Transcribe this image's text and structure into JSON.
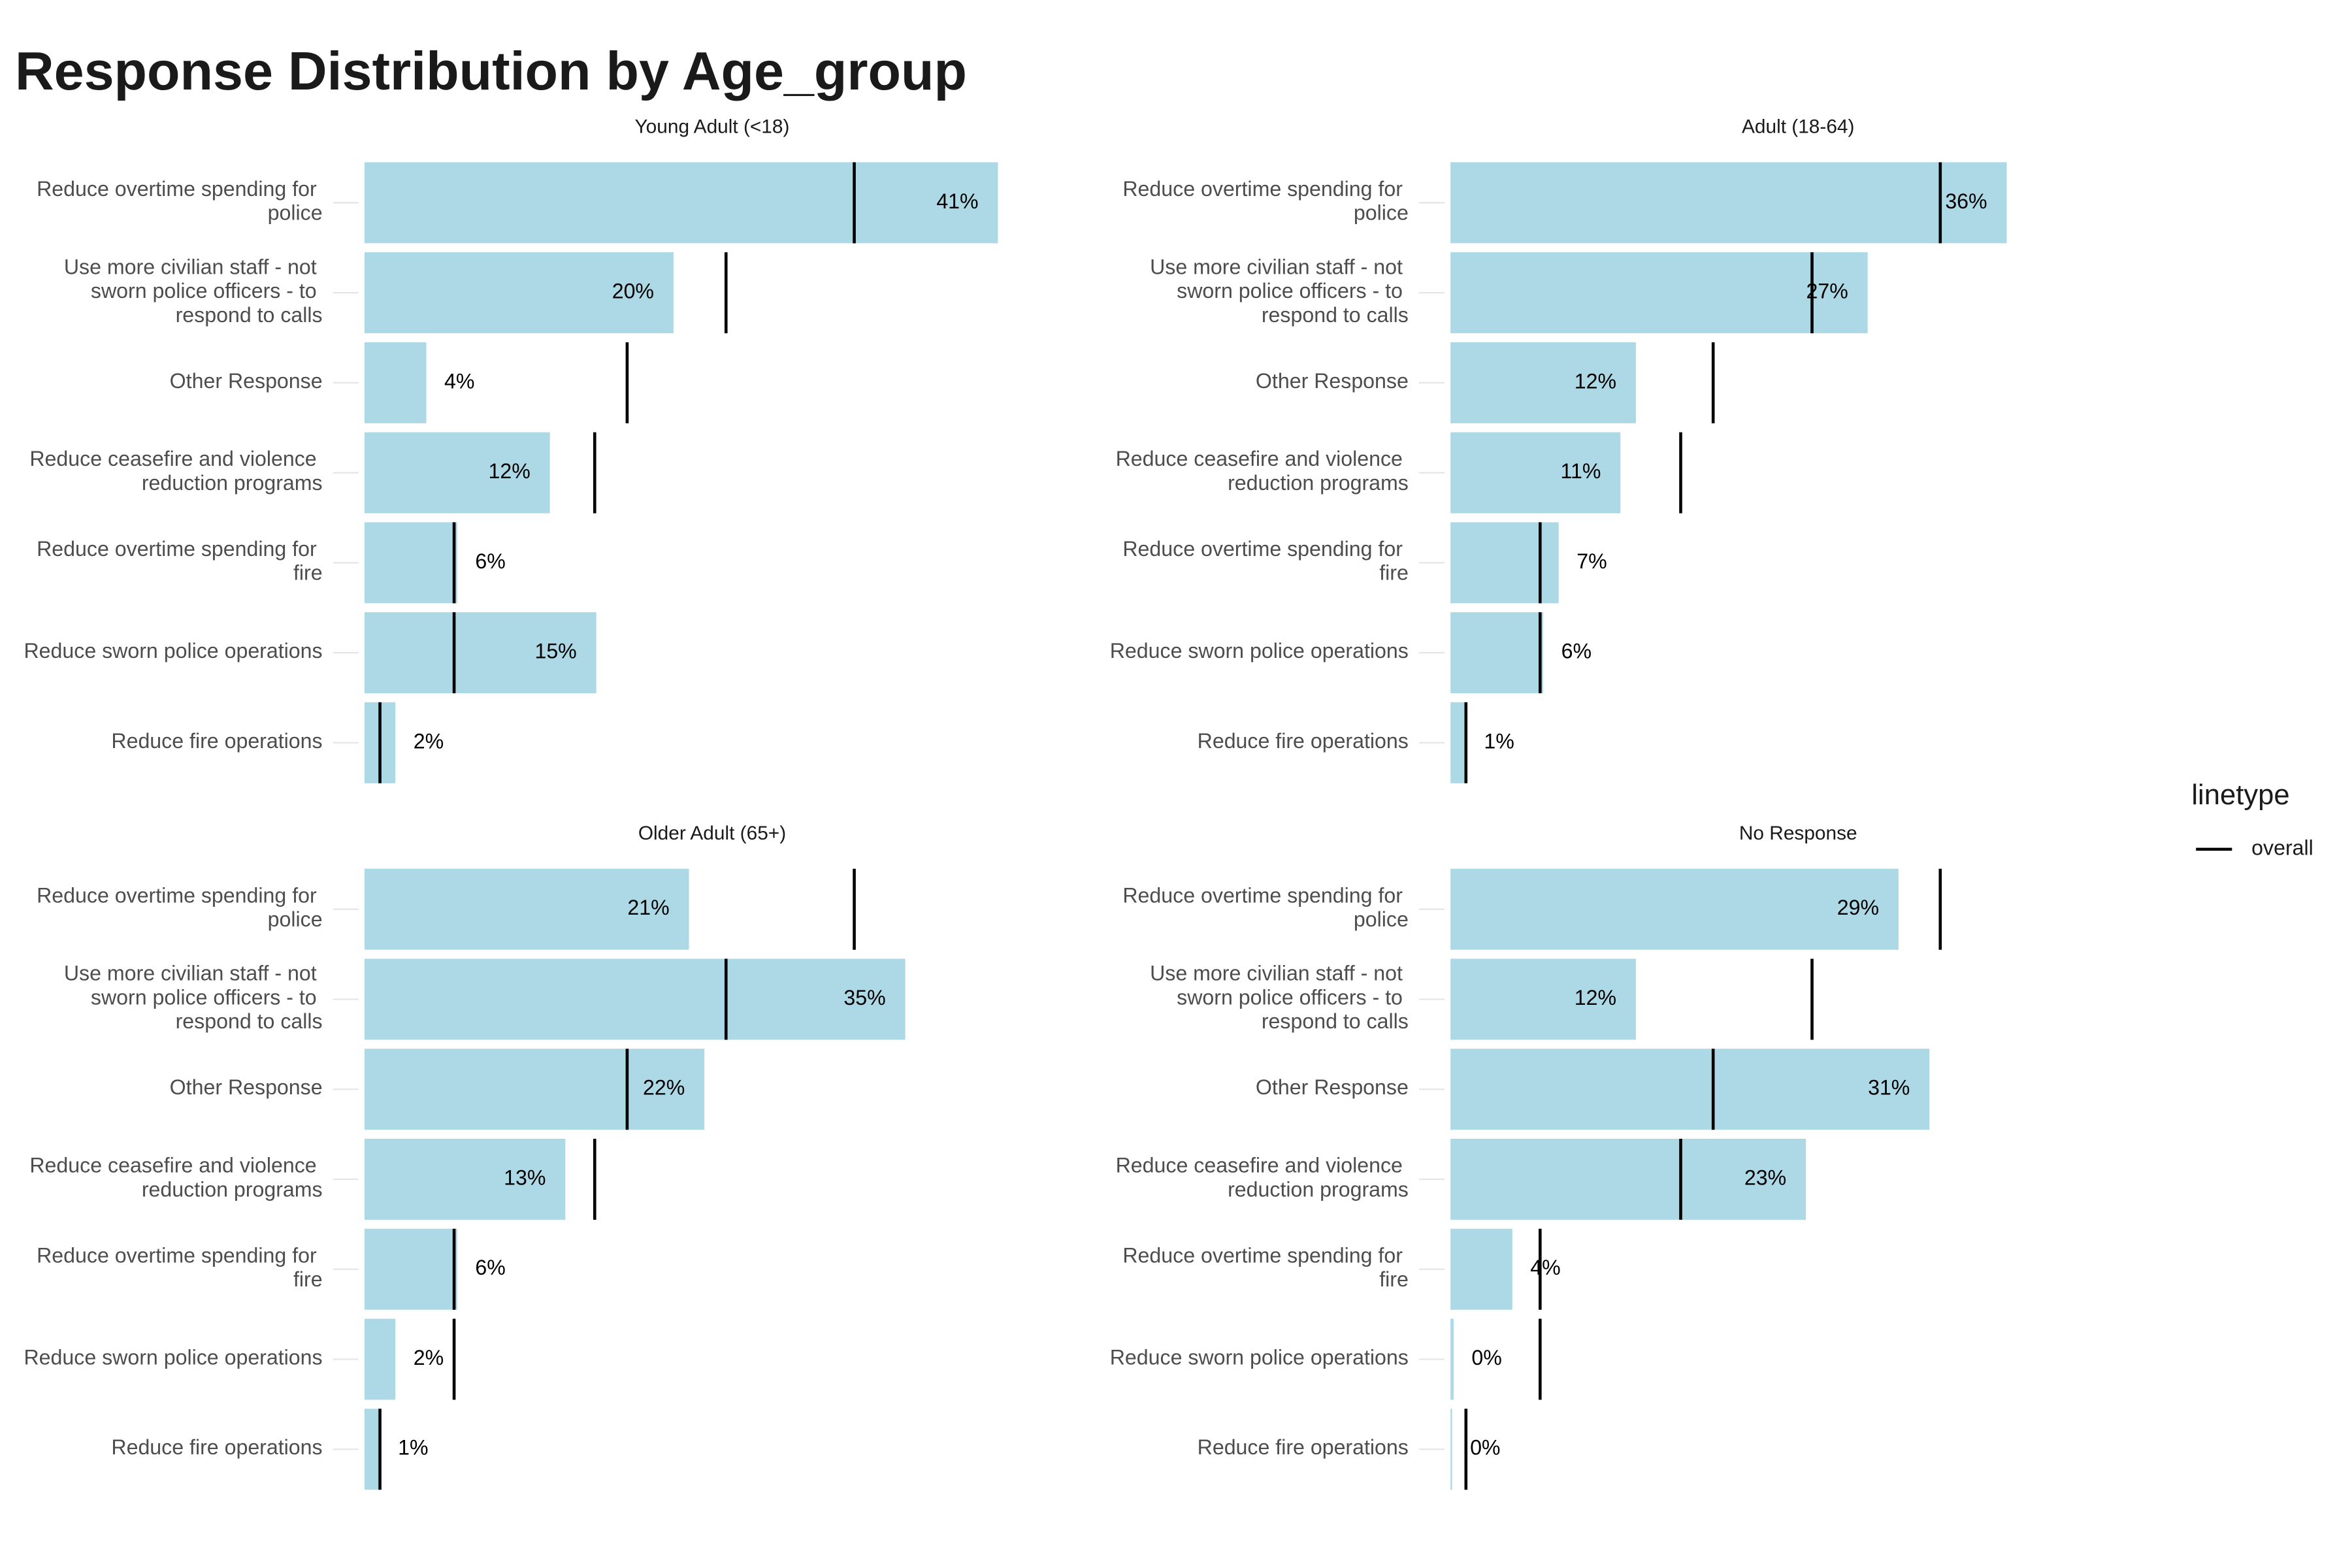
{
  "title": "Response Distribution by Age_group",
  "chart_data": {
    "type": "bar",
    "orientation": "horizontal",
    "categories": [
      "Reduce overtime spending for police",
      "Use more civilian staff - not sworn police officers - to respond to calls",
      "Other Response",
      "Reduce ceasefire and violence reduction programs",
      "Reduce overtime spending for fire",
      "Reduce sworn police operations",
      "Reduce fire operations"
    ],
    "color": "#add8e6",
    "xlim": [
      0,
      45
    ],
    "facets": [
      {
        "title": "Young Adult (<18)",
        "values": [
          41,
          20,
          4,
          12,
          6,
          15,
          2
        ],
        "value_labels": [
          "41%",
          "20%",
          "4%",
          "12%",
          "6%",
          "15%",
          "2%"
        ]
      },
      {
        "title": "Adult (18-64)",
        "values": [
          36,
          27,
          12,
          11,
          7,
          6,
          1
        ],
        "value_labels": [
          "36%",
          "27%",
          "12%",
          "11%",
          "7%",
          "6%",
          "1%"
        ]
      },
      {
        "title": "Older Adult (65+)",
        "values": [
          21,
          35,
          22,
          13,
          6,
          2,
          1
        ],
        "value_labels": [
          "21%",
          "35%",
          "22%",
          "13%",
          "6%",
          "2%",
          "1%"
        ]
      },
      {
        "title": "No Response",
        "values": [
          29,
          12,
          31,
          23,
          4,
          0.2,
          0.1
        ],
        "value_labels": [
          "29%",
          "12%",
          "31%",
          "23%",
          "4%",
          "0%",
          "0%"
        ]
      }
    ],
    "reference": {
      "name": "overall",
      "color": "#000000",
      "values": [
        31.7,
        23.4,
        17.0,
        14.9,
        5.8,
        5.8,
        1.0
      ]
    },
    "legend_title": "linetype",
    "legend_position": "right"
  }
}
